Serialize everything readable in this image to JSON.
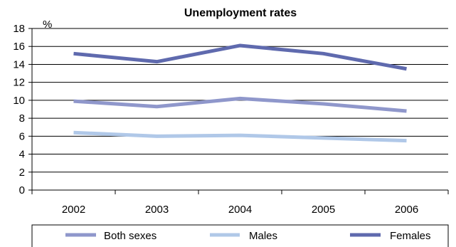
{
  "chart_data": {
    "type": "line",
    "title": "Unemployment rates",
    "ylabel": "%",
    "xlabel": "",
    "categories": [
      "2002",
      "2003",
      "2004",
      "2005",
      "2006"
    ],
    "ylim": [
      0,
      18
    ],
    "yticks": [
      0,
      2,
      4,
      6,
      8,
      10,
      12,
      14,
      16,
      18
    ],
    "grid": true,
    "legend_position": "bottom",
    "series": [
      {
        "name": "Both sexes",
        "color": "#8f97cb",
        "values": [
          9.9,
          9.3,
          10.2,
          9.6,
          8.8
        ]
      },
      {
        "name": "Males",
        "color": "#b0c8e8",
        "values": [
          6.4,
          6.0,
          6.1,
          5.8,
          5.5
        ]
      },
      {
        "name": "Females",
        "color": "#5f6aae",
        "values": [
          15.2,
          14.3,
          16.1,
          15.2,
          13.5
        ]
      }
    ]
  }
}
